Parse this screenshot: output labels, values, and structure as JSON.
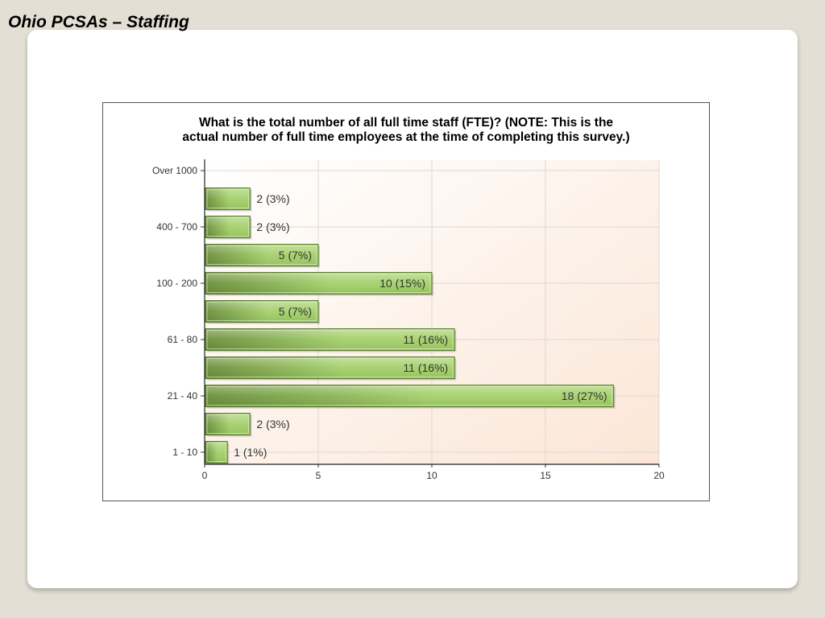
{
  "slide": {
    "title": "Ohio PCSAs – Staffing"
  },
  "chart_data": {
    "type": "bar",
    "orientation": "horizontal",
    "title_lines": [
      "What is the total number of all full time staff (FTE)? (NOTE: This is the",
      "actual number of full time employees at the time of completing this survey.)"
    ],
    "categories": [
      "Over 1000",
      "",
      "400 - 700",
      "",
      "100 - 200",
      "",
      "61 - 80",
      "",
      "21 - 40",
      "",
      "1 - 10"
    ],
    "values": [
      0,
      2,
      2,
      5,
      10,
      5,
      11,
      11,
      18,
      2,
      1
    ],
    "data_labels": [
      "",
      "2 (3%)",
      "2 (3%)",
      "5 (7%)",
      "10 (15%)",
      "5 (7%)",
      "11 (16%)",
      "11 (16%)",
      "18 (27%)",
      "2 (3%)",
      "1 (1%)"
    ],
    "xlim": [
      0,
      20
    ],
    "xticks": [
      "0",
      "5",
      "10",
      "15",
      "20"
    ],
    "grid": true,
    "colors": {
      "bar_dark": "#6a8f3a",
      "bar_light": "#a4d06a",
      "bar_border": "#5b7d32",
      "plot_bg_start": "#ffffff",
      "plot_bg_end": "#fbe6d6",
      "grid": "#d9d9d9"
    }
  }
}
